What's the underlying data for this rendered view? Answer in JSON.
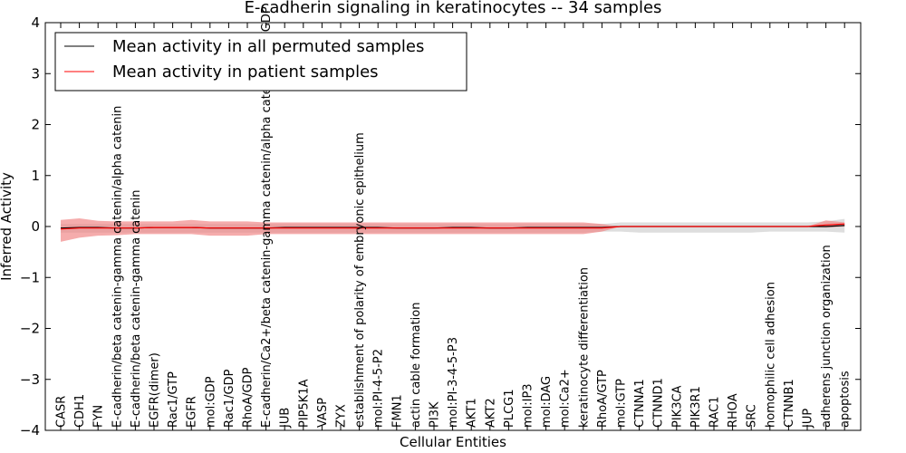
{
  "chart_data": {
    "type": "line",
    "title": "E-cadherin signaling in keratinocytes -- 34 samples",
    "xlabel": "Cellular Entities",
    "ylabel": "Inferred Activity",
    "ylim": [
      -4,
      4
    ],
    "yticks": [
      -4,
      -3,
      -2,
      -1,
      0,
      1,
      2,
      3,
      4
    ],
    "ytick_labels": [
      "−4",
      "−3",
      "−2",
      "−1",
      "0",
      "1",
      "2",
      "3",
      "4"
    ],
    "legend_position": "top-left",
    "categories": [
      "CASR",
      "CDH1",
      "FYN",
      "E-cadherin/beta catenin-gamma catenin/alpha catenin",
      "E-cadherin/beta catenin-gamma catenin",
      "EGFR(dimer)",
      "Rac1/GTP",
      "EGFR",
      "mol:GDP",
      "Rac1/GDP",
      "RhoA/GDP",
      "E-cadherin/Ca2+/beta catenin-gamma catenin/alpha catenin/Rac1/GDP",
      "JUB",
      "PIP5K1A",
      "VASP",
      "ZYX",
      "establishment of polarity of embryonic epithelium",
      "mol:PI-4-5-P2",
      "FMN1",
      "actin cable formation",
      "PI3K",
      "mol:PI-3-4-5-P3",
      "AKT1",
      "AKT2",
      "PLCG1",
      "mol:IP3",
      "mol:DAG",
      "mol:Ca2+",
      "keratinocyte differentiation",
      "RhoA/GTP",
      "mol:GTP",
      "CTNNA1",
      "CTNND1",
      "PIK3CA",
      "PIK3R1",
      "RAC1",
      "RHOA",
      "SRC",
      "homophilic cell adhesion",
      "CTNNB1",
      "JUP",
      "adherens junction organization",
      "apoptosis"
    ],
    "series": [
      {
        "name": "Mean activity in all permuted samples",
        "color": "#000000",
        "band_color": "#d3d3d3",
        "values": [
          -0.03,
          -0.02,
          -0.02,
          -0.03,
          -0.03,
          -0.02,
          -0.02,
          -0.02,
          -0.03,
          -0.03,
          -0.03,
          -0.03,
          -0.02,
          -0.02,
          -0.02,
          -0.02,
          -0.02,
          -0.02,
          -0.03,
          -0.03,
          -0.03,
          -0.02,
          -0.02,
          -0.03,
          -0.03,
          -0.02,
          -0.02,
          -0.02,
          -0.02,
          -0.02,
          0.0,
          0.0,
          0.0,
          0.0,
          0.0,
          0.0,
          0.0,
          0.0,
          0.0,
          0.0,
          0.0,
          0.0,
          0.02
        ],
        "upper": [
          0.05,
          0.05,
          0.05,
          0.05,
          0.05,
          0.05,
          0.05,
          0.05,
          0.05,
          0.05,
          0.05,
          0.05,
          0.05,
          0.05,
          0.05,
          0.05,
          0.05,
          0.05,
          0.05,
          0.05,
          0.05,
          0.05,
          0.05,
          0.05,
          0.05,
          0.05,
          0.05,
          0.05,
          0.05,
          0.05,
          0.08,
          0.08,
          0.08,
          0.08,
          0.08,
          0.08,
          0.08,
          0.08,
          0.08,
          0.08,
          0.08,
          0.1,
          0.15
        ],
        "lower": [
          -0.12,
          -0.12,
          -0.12,
          -0.12,
          -0.12,
          -0.12,
          -0.12,
          -0.12,
          -0.12,
          -0.12,
          -0.12,
          -0.12,
          -0.12,
          -0.12,
          -0.12,
          -0.12,
          -0.12,
          -0.12,
          -0.12,
          -0.12,
          -0.12,
          -0.12,
          -0.12,
          -0.12,
          -0.12,
          -0.12,
          -0.12,
          -0.12,
          -0.12,
          -0.1,
          -0.1,
          -0.12,
          -0.12,
          -0.12,
          -0.12,
          -0.12,
          -0.12,
          -0.12,
          -0.1,
          -0.1,
          -0.1,
          -0.1,
          -0.12
        ]
      },
      {
        "name": "Mean activity in patient samples",
        "color": "#ff0000",
        "band_color": "#f08080",
        "values": [
          -0.05,
          -0.03,
          -0.03,
          -0.03,
          -0.03,
          -0.02,
          -0.02,
          -0.02,
          -0.03,
          -0.03,
          -0.03,
          -0.03,
          -0.03,
          -0.03,
          -0.03,
          -0.03,
          -0.03,
          -0.03,
          -0.03,
          -0.03,
          -0.03,
          -0.03,
          -0.03,
          -0.03,
          -0.03,
          -0.03,
          -0.03,
          -0.03,
          -0.03,
          -0.03,
          0.0,
          0.0,
          0.0,
          0.0,
          0.0,
          0.0,
          0.0,
          0.0,
          0.0,
          0.0,
          0.0,
          0.03,
          0.05
        ],
        "upper": [
          0.13,
          0.16,
          0.11,
          0.1,
          0.1,
          0.1,
          0.1,
          0.13,
          0.1,
          0.1,
          0.1,
          0.08,
          0.08,
          0.08,
          0.08,
          0.08,
          0.08,
          0.08,
          0.08,
          0.08,
          0.08,
          0.08,
          0.08,
          0.08,
          0.08,
          0.08,
          0.08,
          0.08,
          0.08,
          0.05,
          0.0,
          0.0,
          0.0,
          0.0,
          0.0,
          0.0,
          0.0,
          0.0,
          0.0,
          0.0,
          0.0,
          0.12,
          0.08
        ],
        "lower": [
          -0.3,
          -0.22,
          -0.18,
          -0.17,
          -0.15,
          -0.15,
          -0.15,
          -0.15,
          -0.18,
          -0.18,
          -0.18,
          -0.15,
          -0.15,
          -0.15,
          -0.15,
          -0.15,
          -0.15,
          -0.15,
          -0.15,
          -0.15,
          -0.15,
          -0.15,
          -0.15,
          -0.15,
          -0.15,
          -0.15,
          -0.15,
          -0.15,
          -0.15,
          -0.1,
          0.0,
          0.0,
          0.0,
          0.0,
          0.0,
          0.0,
          0.0,
          0.0,
          0.0,
          0.0,
          0.0,
          -0.02,
          0.0
        ]
      }
    ]
  }
}
